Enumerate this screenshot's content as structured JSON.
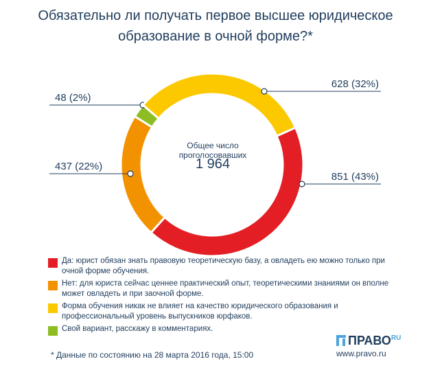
{
  "title_line1": "Обязательно ли получать первое высшее юридическое",
  "title_line2": "образование в очной форме?*",
  "center_label": "Общее число проголосовавших",
  "center_total": "1 964",
  "chart_data": {
    "type": "pie",
    "total": 1964,
    "slices": [
      {
        "category": "Да",
        "value": 851,
        "percent": 43,
        "color": "#e31e24",
        "label": "851 (43%)"
      },
      {
        "category": "Нет",
        "value": 437,
        "percent": 22,
        "color": "#f39200",
        "label": "437 (22%)"
      },
      {
        "category": "Свой вариант",
        "value": 48,
        "percent": 2,
        "color": "#8dbd23",
        "label": "48 (2%)"
      },
      {
        "category": "Форма обучения никак не влияет",
        "value": 628,
        "percent": 32,
        "color": "#fcc800",
        "label": "628 (32%)"
      }
    ]
  },
  "legend": [
    {
      "color": "#e31e24",
      "text": "Да: юрист обязан знать правовую теоретическую базу, а овладеть ею можно только при очной форме обучения."
    },
    {
      "color": "#f39200",
      "text": "Нет: для юриста сейчас ценнее практический опыт, теоретическими знаниями он вполне может овладеть и при заочной форме."
    },
    {
      "color": "#fcc800",
      "text": "Форма обучения никак не влияет на качество юридического образования и профессиональный уровень выпускников юрфаков."
    },
    {
      "color": "#8dbd23",
      "text": "Свой вариант, расскажу в комментариях."
    }
  ],
  "footnote": "* Данные по состоянию на 28 марта 2016 года, 15:00",
  "brand": {
    "name": "ПРАВО",
    "suffix": "RU",
    "url": "www.pravo.ru",
    "mark_color": "#4aa3df"
  }
}
